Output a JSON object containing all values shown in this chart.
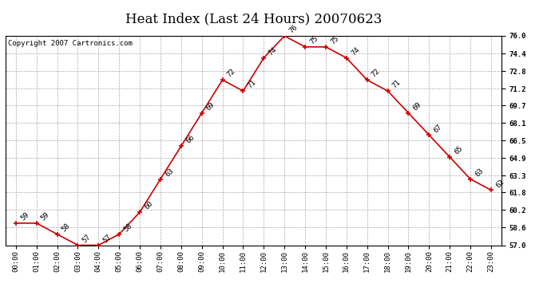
{
  "title": "Heat Index (Last 24 Hours) 20070623",
  "copyright": "Copyright 2007 Cartronics.com",
  "hours": [
    "00:00",
    "01:00",
    "02:00",
    "03:00",
    "04:00",
    "05:00",
    "06:00",
    "07:00",
    "08:00",
    "09:00",
    "10:00",
    "11:00",
    "12:00",
    "13:00",
    "14:00",
    "15:00",
    "16:00",
    "17:00",
    "18:00",
    "19:00",
    "20:00",
    "21:00",
    "22:00",
    "23:00"
  ],
  "values": [
    59,
    59,
    58,
    57,
    57,
    58,
    60,
    63,
    66,
    69,
    72,
    71,
    74,
    76,
    75,
    75,
    74,
    72,
    71,
    69,
    67,
    65,
    63,
    62
  ],
  "ylim": [
    57.0,
    76.0
  ],
  "yticks": [
    57.0,
    58.6,
    60.2,
    61.8,
    63.3,
    64.9,
    66.5,
    68.1,
    69.7,
    71.2,
    72.8,
    74.4,
    76.0
  ],
  "line_color": "#cc0000",
  "marker_color": "#cc0000",
  "bg_color": "#ffffff",
  "grid_color": "#aaaaaa",
  "title_fontsize": 12,
  "label_fontsize": 6.5,
  "annotation_fontsize": 6.5,
  "copyright_fontsize": 6.5
}
